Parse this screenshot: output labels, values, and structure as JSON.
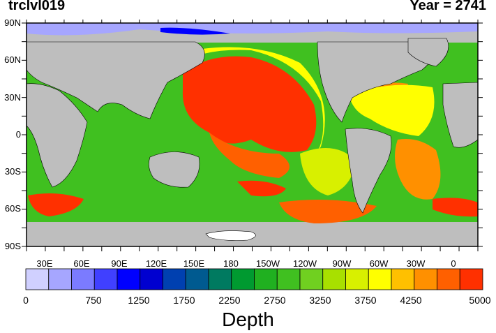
{
  "title_left": "trclvl019",
  "title_right": "Year = 2741",
  "lat_labels": [
    "90N",
    "60N",
    "30N",
    "0",
    "30S",
    "60S",
    "90S"
  ],
  "lon_labels": [
    "30E",
    "60E",
    "90E",
    "120E",
    "150E",
    "180",
    "150W",
    "120W",
    "90W",
    "60W",
    "30W",
    "0"
  ],
  "colorbar": {
    "tick_labels": [
      "0",
      "750",
      "1250",
      "1750",
      "2250",
      "2750",
      "3250",
      "3750",
      "4250",
      "5000"
    ],
    "colors": [
      "#d0d0ff",
      "#a6a6ff",
      "#7b7bff",
      "#4040ff",
      "#0000ff",
      "#0000d0",
      "#0040b0",
      "#005a90",
      "#007a60",
      "#009a30",
      "#20b020",
      "#40c020",
      "#70d020",
      "#a8e000",
      "#d8f000",
      "#ffff00",
      "#ffc000",
      "#ff9000",
      "#ff6000",
      "#ff3000"
    ],
    "label": "Depth"
  },
  "colors": {
    "land": "#bebebe",
    "ice": "#ffffff"
  }
}
